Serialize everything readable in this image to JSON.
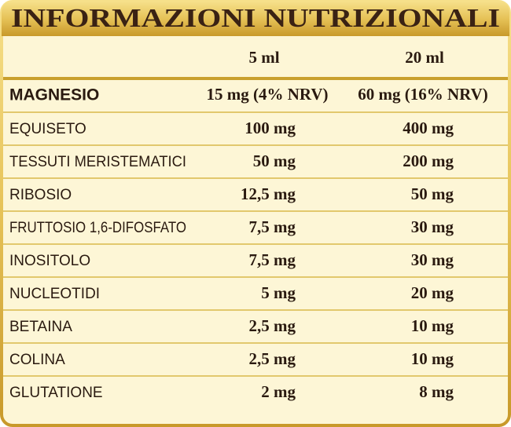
{
  "table": {
    "title": "INFORMAZIONI NUTRIZIONALI",
    "columns": [
      "5 ml",
      "20 ml"
    ],
    "rows": [
      [
        "MAGNESIO",
        "15 mg (4% NRV)",
        "60 mg (16% NRV)"
      ],
      [
        "EQUISETO",
        "100 mg",
        "400 mg"
      ],
      [
        "TESSUTI MERISTEMATICI",
        "50 mg",
        "200 mg"
      ],
      [
        "RIBOSIO",
        "12,5 mg",
        "50 mg"
      ],
      [
        "FRUTTOSIO 1,6-DIFOSFATO",
        "7,5 mg",
        "30 mg"
      ],
      [
        "INOSITOLO",
        "7,5 mg",
        "30 mg"
      ],
      [
        "NUCLEOTIDI",
        "5 mg",
        "20 mg"
      ],
      [
        "BETAINA",
        "2,5 mg",
        "10 mg"
      ],
      [
        "COLINA",
        "2,5 mg",
        "10 mg"
      ],
      [
        "GLUTATIONE",
        "2 mg",
        "8 mg"
      ]
    ]
  }
}
